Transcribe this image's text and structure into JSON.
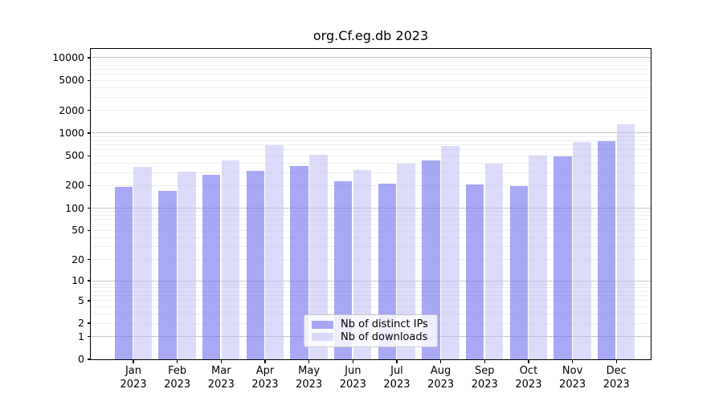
{
  "chart_data": {
    "type": "bar",
    "title": "org.Cf.eg.db 2023",
    "categories": [
      "Jan 2023",
      "Feb 2023",
      "Mar 2023",
      "Apr 2023",
      "May 2023",
      "Jun 2023",
      "Jul 2023",
      "Aug 2023",
      "Sep 2023",
      "Oct 2023",
      "Nov 2023",
      "Dec 2023"
    ],
    "series": [
      {
        "name": "Nb of distinct IPs",
        "color": "rgba(122,122,240,0.65)",
        "values": [
          195,
          172,
          280,
          315,
          365,
          230,
          215,
          430,
          207,
          198,
          490,
          775
        ]
      },
      {
        "name": "Nb of downloads",
        "color": "rgba(192,192,246,0.55)",
        "values": [
          360,
          310,
          435,
          700,
          515,
          325,
          395,
          670,
          390,
          500,
          760,
          1300
        ]
      }
    ],
    "y_scale": "log10(value+1)",
    "y_ticks": [
      0,
      1,
      2,
      5,
      10,
      20,
      50,
      100,
      200,
      500,
      1000,
      2000,
      5000,
      10000
    ],
    "ylim": [
      0,
      10000
    ],
    "xlabel": "",
    "ylabel": "",
    "grid": "on",
    "legend_position": "lower center"
  }
}
